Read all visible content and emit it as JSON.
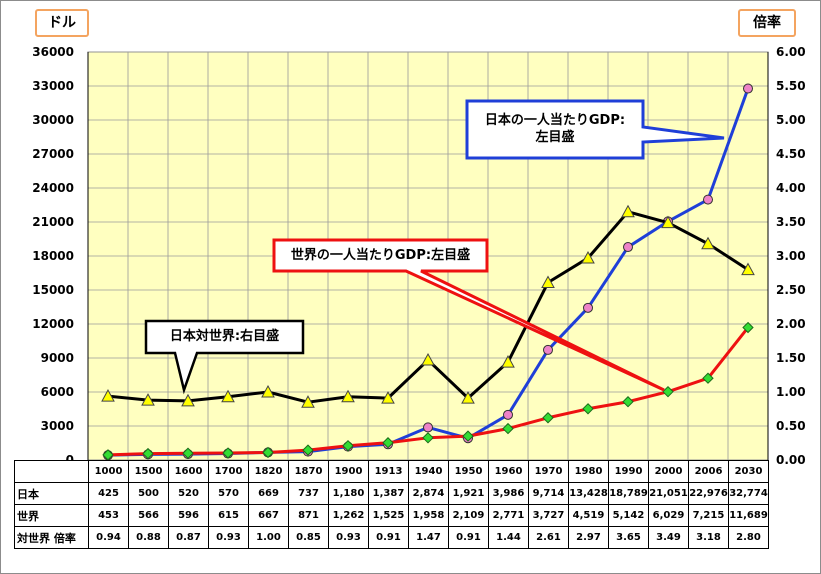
{
  "left_unit": "ドル",
  "right_unit": "倍率",
  "callouts": {
    "japan": [
      "日本の一人当たりGDP:",
      "左目盛"
    ],
    "world": "世界の一人当たりGDP:左目盛",
    "ratio": "日本対世界:右目盛"
  },
  "table_rows": [
    {
      "label": "日本",
      "values": [
        "425",
        "500",
        "520",
        "570",
        "669",
        "737",
        "1,180",
        "1,387",
        "2,874",
        "1,921",
        "3,986",
        "9,714",
        "13,428",
        "18,789",
        "21,051",
        "22,976",
        "32,774"
      ]
    },
    {
      "label": "世界",
      "values": [
        "453",
        "566",
        "596",
        "615",
        "667",
        "871",
        "1,262",
        "1,525",
        "1,958",
        "2,109",
        "2,771",
        "3,727",
        "4,519",
        "5,142",
        "6,029",
        "7,215",
        "11,689"
      ]
    },
    {
      "label": "対世界 倍率",
      "values": [
        "0.94",
        "0.88",
        "0.87",
        "0.93",
        "1.00",
        "0.85",
        "0.93",
        "0.91",
        "1.47",
        "0.91",
        "1.44",
        "2.61",
        "2.97",
        "3.65",
        "3.49",
        "3.18",
        "2.80"
      ]
    }
  ],
  "chart_data": {
    "type": "line",
    "categories": [
      "1000",
      "1500",
      "1600",
      "1700",
      "1820",
      "1870",
      "1900",
      "1913",
      "1940",
      "1950",
      "1960",
      "1970",
      "1980",
      "1990",
      "2000",
      "2006",
      "2030"
    ],
    "series": [
      {
        "name": "日本",
        "axis": "left",
        "color": "#1f3fd8",
        "marker": "circle",
        "marker_color": "#ee82c8",
        "values": [
          425,
          500,
          520,
          570,
          669,
          737,
          1180,
          1387,
          2874,
          1921,
          3986,
          9714,
          13428,
          18789,
          21051,
          22976,
          32774
        ]
      },
      {
        "name": "世界",
        "axis": "left",
        "color": "#ee1111",
        "marker": "diamond",
        "marker_color": "#33dd33",
        "values": [
          453,
          566,
          596,
          615,
          667,
          871,
          1262,
          1525,
          1958,
          2109,
          2771,
          3727,
          4519,
          5142,
          6029,
          7215,
          11689
        ]
      },
      {
        "name": "対世界 倍率",
        "axis": "right",
        "color": "#000000",
        "marker": "triangle",
        "marker_color": "#ffff00",
        "values": [
          0.94,
          0.88,
          0.87,
          0.93,
          1.0,
          0.85,
          0.93,
          0.91,
          1.47,
          0.91,
          1.44,
          2.61,
          2.97,
          3.65,
          3.49,
          3.18,
          2.8
        ]
      }
    ],
    "y_left": {
      "label": "ドル",
      "min": 0,
      "max": 36000,
      "ticks": [
        "0",
        "3000",
        "6000",
        "9000",
        "12000",
        "15000",
        "18000",
        "21000",
        "24000",
        "27000",
        "30000",
        "33000",
        "36000"
      ]
    },
    "y_right": {
      "label": "倍率",
      "min": 0,
      "max": 6,
      "ticks": [
        "0.00",
        "0.50",
        "1.00",
        "1.50",
        "2.00",
        "2.50",
        "3.00",
        "3.50",
        "4.00",
        "4.50",
        "5.00",
        "5.50",
        "6.00"
      ]
    },
    "grid": true,
    "background": "#ffffc0"
  }
}
